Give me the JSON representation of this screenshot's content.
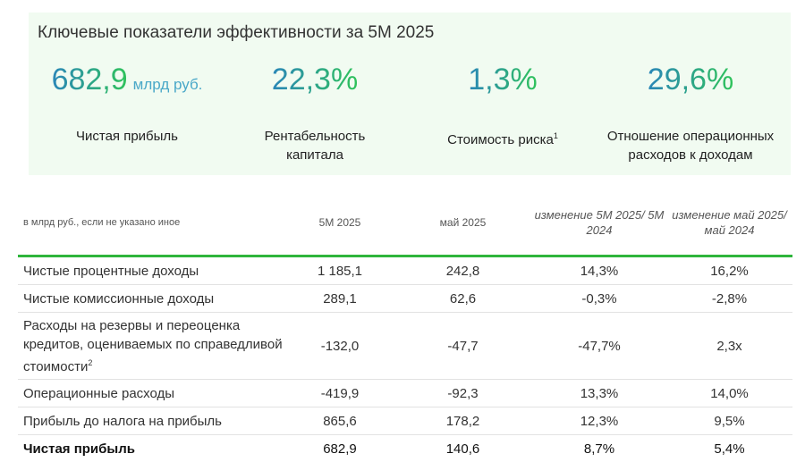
{
  "panel": {
    "title": "Ключевые показатели эффективности за 5М 2025",
    "kpis": [
      {
        "value": "682,9",
        "unit": "млрд руб.",
        "label": "Чистая прибыль"
      },
      {
        "value": "22,3%",
        "label": "Рентабельность капитала"
      },
      {
        "value": "1,3%",
        "label": "Стоимость риска",
        "footnote": "1"
      },
      {
        "value": "29,6%",
        "label": "Отношение операционных расходов к доходам"
      }
    ]
  },
  "table": {
    "headers": [
      "в млрд руб., если не указано иное",
      "5М 2025",
      "май 2025",
      "изменение 5М 2025/ 5М 2024",
      "изменение май 2025/ май 2024"
    ],
    "rows": [
      {
        "label": "Чистые процентные доходы",
        "values": [
          "1 185,1",
          "242,8",
          "14,3%",
          "16,2%"
        ]
      },
      {
        "label": "Чистые комиссионные доходы",
        "values": [
          "289,1",
          "62,6",
          "-0,3%",
          "-2,8%"
        ]
      },
      {
        "label": "Расходы на резервы и переоценка кредитов, оцениваемых по справедливой стоимости",
        "footnote": "2",
        "values": [
          "-132,0",
          "-47,7",
          "-47,7%",
          "2,3x"
        ]
      },
      {
        "label": "Операционные расходы",
        "values": [
          "-419,9",
          "-92,3",
          "13,3%",
          "14,0%"
        ]
      },
      {
        "label": "Прибыль до налога на прибыль",
        "values": [
          "865,6",
          "178,2",
          "12,3%",
          "9,5%"
        ]
      },
      {
        "label": "Чистая прибыль",
        "values": [
          "682,9",
          "140,6",
          "8,7%",
          "5,4%"
        ]
      }
    ]
  },
  "colors": {
    "panel_bg": "#f1fbf1",
    "accent_green": "#2fb53c",
    "gradient_blue": "#2a86b8"
  }
}
